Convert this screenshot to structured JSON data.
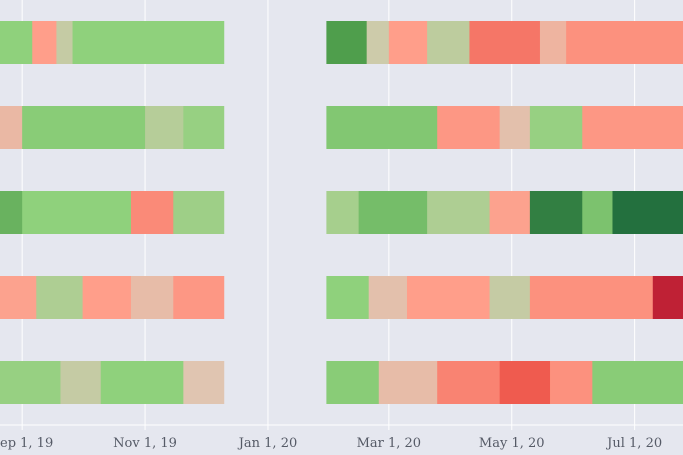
{
  "chart_data": {
    "type": "heatmap",
    "title": "",
    "xlabel": "",
    "ylabel": "",
    "x_ticks": [
      "Sep 1, 19",
      "Nov 1, 19",
      "Jan 1, 20",
      "Mar 1, 20",
      "May 1, 20",
      "Jul 1, 20"
    ],
    "x_range": [
      "2019-08-21",
      "2020-07-25"
    ],
    "gap": [
      "2019-12-10",
      "2020-01-30"
    ],
    "grid": true,
    "legend": "none",
    "colorscale": {
      "min": -3,
      "max": 3,
      "stops": [
        [
          -3,
          "#1e6b3c"
        ],
        [
          -2,
          "#4f9e4c"
        ],
        [
          -1,
          "#8fd17c"
        ],
        [
          0,
          "#dcc9b5"
        ],
        [
          1,
          "#ff9e8a"
        ],
        [
          2,
          "#ef5b4f"
        ],
        [
          3,
          "#b3132f"
        ]
      ]
    },
    "rows": [
      {
        "segments": [
          {
            "start": "2019-08-21",
            "end": "2019-09-06",
            "value": -1.0
          },
          {
            "start": "2019-09-06",
            "end": "2019-09-18",
            "value": 1.0
          },
          {
            "start": "2019-09-18",
            "end": "2019-09-26",
            "value": -0.3
          },
          {
            "start": "2019-09-26",
            "end": "2019-12-10",
            "value": -1.0
          },
          {
            "start": "2020-01-30",
            "end": "2020-02-19",
            "value": -2.0
          },
          {
            "start": "2020-02-19",
            "end": "2020-03-01",
            "value": -0.2
          },
          {
            "start": "2020-03-01",
            "end": "2020-03-20",
            "value": 1.0
          },
          {
            "start": "2020-03-20",
            "end": "2020-04-10",
            "value": -0.4
          },
          {
            "start": "2020-04-10",
            "end": "2020-05-15",
            "value": 1.6
          },
          {
            "start": "2020-05-15",
            "end": "2020-05-28",
            "value": 0.5
          },
          {
            "start": "2020-05-28",
            "end": "2020-07-25",
            "value": 1.2
          }
        ]
      },
      {
        "segments": [
          {
            "start": "2019-08-21",
            "end": "2019-09-01",
            "value": 0.4
          },
          {
            "start": "2019-09-01",
            "end": "2019-11-01",
            "value": -1.1
          },
          {
            "start": "2019-11-01",
            "end": "2019-11-20",
            "value": -0.5
          },
          {
            "start": "2019-11-20",
            "end": "2019-12-10",
            "value": -0.9
          },
          {
            "start": "2020-01-30",
            "end": "2020-03-25",
            "value": -1.2
          },
          {
            "start": "2020-03-25",
            "end": "2020-04-25",
            "value": 1.1
          },
          {
            "start": "2020-04-25",
            "end": "2020-05-10",
            "value": 0.2
          },
          {
            "start": "2020-05-10",
            "end": "2020-06-05",
            "value": -0.9
          },
          {
            "start": "2020-06-05",
            "end": "2020-07-25",
            "value": 1.1
          }
        ]
      },
      {
        "segments": [
          {
            "start": "2019-08-21",
            "end": "2019-09-01",
            "value": -1.6
          },
          {
            "start": "2019-09-01",
            "end": "2019-10-25",
            "value": -1.0
          },
          {
            "start": "2019-10-25",
            "end": "2019-11-15",
            "value": 1.3
          },
          {
            "start": "2019-11-15",
            "end": "2019-12-10",
            "value": -0.8
          },
          {
            "start": "2020-01-30",
            "end": "2020-02-15",
            "value": -0.7
          },
          {
            "start": "2020-02-15",
            "end": "2020-03-20",
            "value": -1.4
          },
          {
            "start": "2020-03-20",
            "end": "2020-04-20",
            "value": -0.6
          },
          {
            "start": "2020-04-20",
            "end": "2020-05-10",
            "value": 0.9
          },
          {
            "start": "2020-05-10",
            "end": "2020-06-05",
            "value": -2.6
          },
          {
            "start": "2020-06-05",
            "end": "2020-06-20",
            "value": -1.3
          },
          {
            "start": "2020-06-20",
            "end": "2020-07-25",
            "value": -2.9
          }
        ]
      },
      {
        "segments": [
          {
            "start": "2019-08-21",
            "end": "2019-09-08",
            "value": 0.9
          },
          {
            "start": "2019-09-08",
            "end": "2019-10-01",
            "value": -0.6
          },
          {
            "start": "2019-10-01",
            "end": "2019-10-25",
            "value": 1.0
          },
          {
            "start": "2019-10-25",
            "end": "2019-11-15",
            "value": 0.3
          },
          {
            "start": "2019-11-15",
            "end": "2019-12-10",
            "value": 1.1
          },
          {
            "start": "2020-01-30",
            "end": "2020-02-20",
            "value": -1.0
          },
          {
            "start": "2020-02-20",
            "end": "2020-03-10",
            "value": 0.2
          },
          {
            "start": "2020-03-10",
            "end": "2020-04-20",
            "value": 1.0
          },
          {
            "start": "2020-04-20",
            "end": "2020-05-10",
            "value": -0.3
          },
          {
            "start": "2020-05-10",
            "end": "2020-07-10",
            "value": 1.2
          },
          {
            "start": "2020-07-10",
            "end": "2020-07-25",
            "value": 2.8
          }
        ]
      },
      {
        "segments": [
          {
            "start": "2019-08-21",
            "end": "2019-09-20",
            "value": -0.9
          },
          {
            "start": "2019-09-20",
            "end": "2019-10-10",
            "value": -0.3
          },
          {
            "start": "2019-10-10",
            "end": "2019-11-20",
            "value": -1.0
          },
          {
            "start": "2019-11-20",
            "end": "2019-12-10",
            "value": 0.1
          },
          {
            "start": "2020-01-30",
            "end": "2020-02-25",
            "value": -1.1
          },
          {
            "start": "2020-02-25",
            "end": "2020-03-25",
            "value": 0.3
          },
          {
            "start": "2020-03-25",
            "end": "2020-04-25",
            "value": 1.4
          },
          {
            "start": "2020-04-25",
            "end": "2020-05-20",
            "value": 2.0
          },
          {
            "start": "2020-05-20",
            "end": "2020-06-10",
            "value": 1.2
          },
          {
            "start": "2020-06-10",
            "end": "2020-07-25",
            "value": -1.1
          }
        ]
      }
    ]
  }
}
